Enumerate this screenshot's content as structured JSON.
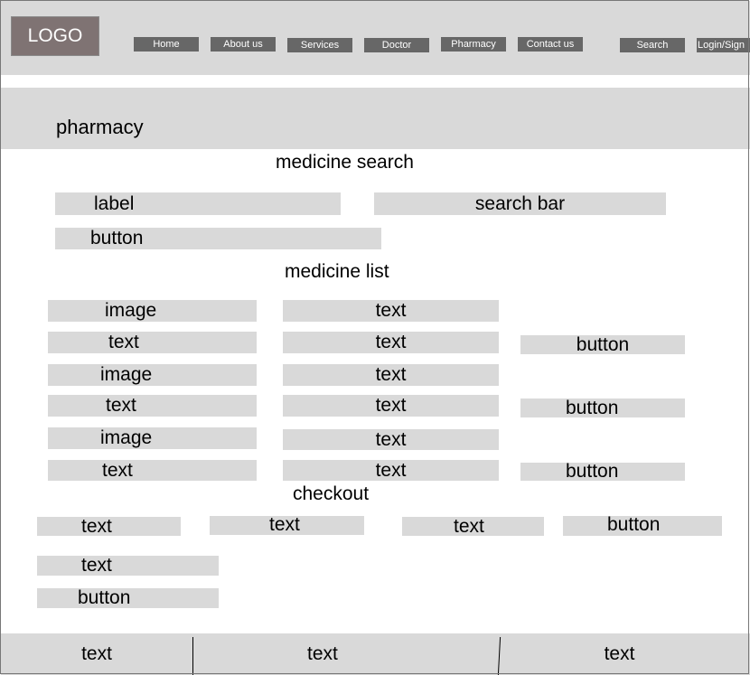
{
  "header": {
    "logo": "LOGO",
    "nav": [
      "Home",
      "About us",
      "Services",
      "Doctor",
      "Pharmacy",
      "Contact us"
    ],
    "search_label": "Search",
    "login_label": "Login/Sign"
  },
  "hero": {
    "title": "pharmacy"
  },
  "search_section": {
    "title": "medicine search",
    "label": "label",
    "search_bar": "search bar",
    "button": "button"
  },
  "medicine_list": {
    "title": "medicine list",
    "rows": [
      {
        "col1": "image",
        "col2": "text",
        "button": ""
      },
      {
        "col1": "text",
        "col2": "text",
        "button": "button"
      },
      {
        "col1": "image",
        "col2": "text",
        "button": ""
      },
      {
        "col1": "text",
        "col2": "text",
        "button": "button"
      },
      {
        "col1": "image",
        "col2": "text",
        "button": ""
      },
      {
        "col1": "text",
        "col2": "text",
        "button": "button"
      }
    ]
  },
  "checkout": {
    "title": "checkout",
    "row": [
      "text",
      "text",
      "text"
    ],
    "row_button": "button",
    "summary_text": "text",
    "summary_button": "button"
  },
  "footer": {
    "columns": [
      "text",
      "text",
      "text"
    ]
  }
}
